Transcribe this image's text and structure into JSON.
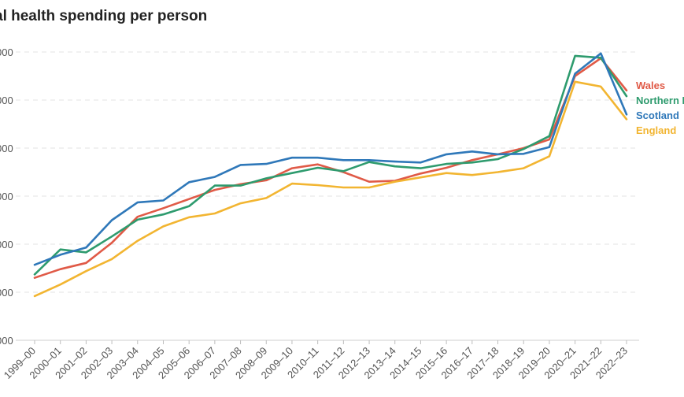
{
  "chart_data": {
    "type": "line",
    "title": "al health spending per person",
    "xlabel": "",
    "ylabel": "",
    "categories": [
      "1999–00",
      "2000–01",
      "2001–02",
      "2002–03",
      "2003–04",
      "2004–05",
      "2005–06",
      "2006–07",
      "2007–08",
      "2008–09",
      "2009–10",
      "2010–11",
      "2011–12",
      "2012–13",
      "2013–14",
      "2014–15",
      "2015–16",
      "2016–17",
      "2017–18",
      "2018–19",
      "2019–20",
      "2020–21",
      "2021–22",
      "2022–23"
    ],
    "y_tick_labels": [
      "000",
      "000",
      "000",
      "000",
      "000",
      "000",
      "000"
    ],
    "ylim": [
      0,
      6
    ],
    "grid": true,
    "legend_placement": "right",
    "series": [
      {
        "name": "Wales",
        "color": "#e05a47",
        "values": [
          1.3,
          1.48,
          1.61,
          2.03,
          2.57,
          2.75,
          2.94,
          3.13,
          3.25,
          3.33,
          3.58,
          3.66,
          3.5,
          3.3,
          3.32,
          3.47,
          3.59,
          3.75,
          3.87,
          4.0,
          4.18,
          5.5,
          5.87,
          5.2
        ]
      },
      {
        "name": "Northern I",
        "color": "#2e9b6e",
        "values": [
          1.37,
          1.89,
          1.83,
          2.16,
          2.51,
          2.62,
          2.79,
          3.22,
          3.22,
          3.37,
          3.48,
          3.59,
          3.52,
          3.71,
          3.62,
          3.58,
          3.67,
          3.7,
          3.77,
          3.98,
          4.25,
          5.92,
          5.88,
          5.08
        ]
      },
      {
        "name": "Scotland",
        "color": "#2f78b9",
        "values": [
          1.57,
          1.78,
          1.93,
          2.5,
          2.87,
          2.91,
          3.29,
          3.4,
          3.65,
          3.67,
          3.8,
          3.8,
          3.75,
          3.75,
          3.72,
          3.7,
          3.87,
          3.93,
          3.87,
          3.88,
          4.02,
          5.55,
          5.97,
          4.7
        ]
      },
      {
        "name": "England",
        "color": "#f2b531",
        "values": [
          0.92,
          1.16,
          1.44,
          1.69,
          2.07,
          2.37,
          2.56,
          2.64,
          2.85,
          2.96,
          3.26,
          3.23,
          3.18,
          3.18,
          3.3,
          3.39,
          3.48,
          3.44,
          3.5,
          3.58,
          3.83,
          5.38,
          5.28,
          4.6
        ]
      }
    ]
  }
}
